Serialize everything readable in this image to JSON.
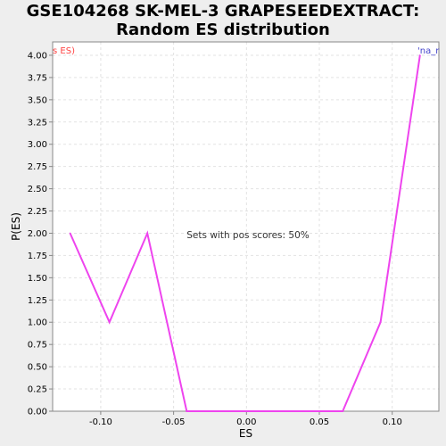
{
  "chart_data": {
    "type": "line",
    "title_line1": "GSE104268 SK-MEL-3 GRAPESEEDEXTRACT:",
    "title_line2": "Random ES distribution",
    "xlabel": "ES",
    "ylabel": "P(ES)",
    "xlim": [
      -0.133,
      0.132
    ],
    "ylim": [
      0,
      4.15
    ],
    "xticks": [
      -0.1,
      -0.05,
      0.0,
      0.05,
      0.1
    ],
    "xtick_labels": [
      "-0.10",
      "-0.05",
      "0.00",
      "0.05",
      "0.10"
    ],
    "yticks": [
      0,
      0.25,
      0.5,
      0.75,
      1.0,
      1.25,
      1.5,
      1.75,
      2.0,
      2.25,
      2.5,
      2.75,
      3.0,
      3.25,
      3.5,
      3.75,
      4.0
    ],
    "ytick_labels": [
      "0.00",
      "0.25",
      "0.50",
      "0.75",
      "1.00",
      "1.25",
      "1.50",
      "1.75",
      "2.00",
      "2.25",
      "2.50",
      "2.75",
      "3.00",
      "3.25",
      "3.50",
      "3.75",
      "4.00"
    ],
    "grid": true,
    "series": [
      {
        "color": "#ee44ee",
        "x": [
          -0.121,
          -0.094,
          -0.068,
          -0.041,
          -0.014,
          0.012,
          0.039,
          0.066,
          0.092,
          0.119
        ],
        "y": [
          2.0,
          1.0,
          2.0,
          0.0,
          0.0,
          0.0,
          0.0,
          0.0,
          1.0,
          4.0
        ]
      }
    ],
    "annotation": "Sets with pos scores: 50%",
    "corner_left_text": "s ES)",
    "corner_left_color": "#ff4444",
    "corner_right_text": "'na_r",
    "corner_right_color": "#4444cc"
  }
}
